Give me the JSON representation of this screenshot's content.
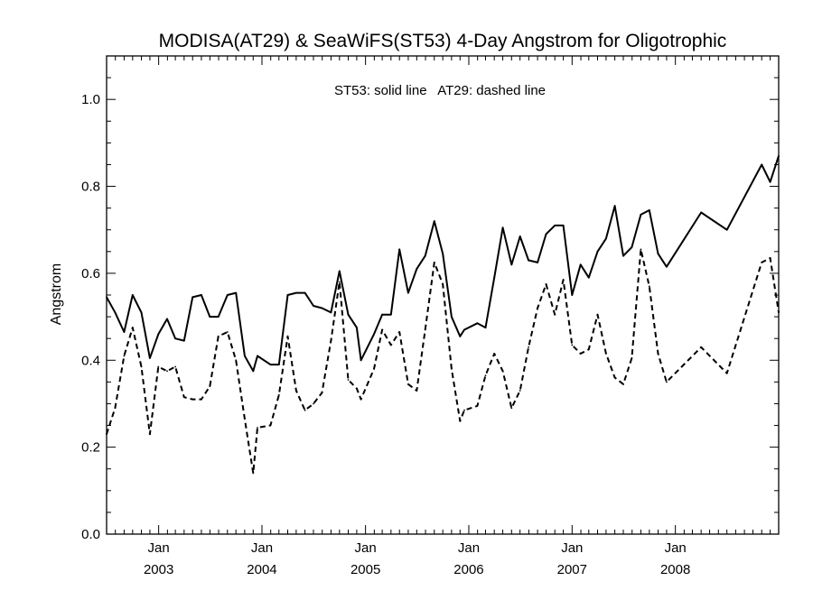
{
  "chart_data": {
    "type": "line",
    "title": "MODISA(AT29) & SeaWiFS(ST53) 4-Day Angstrom for Oligotrophic",
    "annotation": "ST53: solid line   AT29: dashed line",
    "xlabel": "",
    "ylabel": "Angstrom",
    "xlim": [
      "2002-07-01",
      "2008-12-31"
    ],
    "ylim": [
      0,
      1.1
    ],
    "y_ticks": [
      {
        "value": 0.0,
        "label": "0.0"
      },
      {
        "value": 0.2,
        "label": "0.2"
      },
      {
        "value": 0.4,
        "label": "0.4"
      },
      {
        "value": 0.6,
        "label": "0.6"
      },
      {
        "value": 0.8,
        "label": "0.8"
      },
      {
        "value": 1.0,
        "label": "1.0"
      }
    ],
    "x_ticks": [
      {
        "date": "2003-01-01",
        "month": "Jan",
        "year": "2003"
      },
      {
        "date": "2004-01-01",
        "month": "Jan",
        "year": "2004"
      },
      {
        "date": "2005-01-01",
        "month": "Jan",
        "year": "2005"
      },
      {
        "date": "2006-01-01",
        "month": "Jan",
        "year": "2006"
      },
      {
        "date": "2007-01-01",
        "month": "Jan",
        "year": "2007"
      },
      {
        "date": "2008-01-01",
        "month": "Jan",
        "year": "2008"
      }
    ],
    "grid": false,
    "series": [
      {
        "name": "ST53",
        "style": "solid",
        "color": "#000000",
        "points": [
          [
            "2002-07-01",
            0.545
          ],
          [
            "2002-07-31",
            0.51
          ],
          [
            "2002-09-01",
            0.465
          ],
          [
            "2002-10-01",
            0.55
          ],
          [
            "2002-11-01",
            0.51
          ],
          [
            "2002-12-01",
            0.405
          ],
          [
            "2002-12-31",
            0.46
          ],
          [
            "2003-01-31",
            0.495
          ],
          [
            "2003-03-01",
            0.45
          ],
          [
            "2003-04-01",
            0.445
          ],
          [
            "2003-05-01",
            0.545
          ],
          [
            "2003-06-01",
            0.55
          ],
          [
            "2003-07-01",
            0.5
          ],
          [
            "2003-07-31",
            0.5
          ],
          [
            "2003-09-01",
            0.55
          ],
          [
            "2003-10-01",
            0.555
          ],
          [
            "2003-11-01",
            0.41
          ],
          [
            "2003-12-01",
            0.375
          ],
          [
            "2003-12-16",
            0.41
          ],
          [
            "2004-01-31",
            0.39
          ],
          [
            "2004-03-01",
            0.39
          ],
          [
            "2004-04-01",
            0.55
          ],
          [
            "2004-05-01",
            0.555
          ],
          [
            "2004-06-01",
            0.555
          ],
          [
            "2004-07-01",
            0.525
          ],
          [
            "2004-07-31",
            0.52
          ],
          [
            "2004-09-01",
            0.51
          ],
          [
            "2004-10-01",
            0.605
          ],
          [
            "2004-11-01",
            0.505
          ],
          [
            "2004-12-01",
            0.475
          ],
          [
            "2004-12-16",
            0.4
          ],
          [
            "2005-01-31",
            0.46
          ],
          [
            "2005-03-01",
            0.505
          ],
          [
            "2005-04-01",
            0.505
          ],
          [
            "2005-05-01",
            0.655
          ],
          [
            "2005-06-01",
            0.555
          ],
          [
            "2005-07-01",
            0.61
          ],
          [
            "2005-07-31",
            0.64
          ],
          [
            "2005-09-01",
            0.72
          ],
          [
            "2005-10-01",
            0.645
          ],
          [
            "2005-11-01",
            0.5
          ],
          [
            "2005-12-01",
            0.455
          ],
          [
            "2005-12-16",
            0.47
          ],
          [
            "2006-01-31",
            0.485
          ],
          [
            "2006-03-01",
            0.475
          ],
          [
            "2006-04-01",
            0.59
          ],
          [
            "2006-05-01",
            0.705
          ],
          [
            "2006-06-01",
            0.62
          ],
          [
            "2006-07-01",
            0.685
          ],
          [
            "2006-07-31",
            0.63
          ],
          [
            "2006-09-01",
            0.625
          ],
          [
            "2006-10-01",
            0.69
          ],
          [
            "2006-11-01",
            0.71
          ],
          [
            "2006-12-01",
            0.71
          ],
          [
            "2007-01-01",
            0.55
          ],
          [
            "2007-01-31",
            0.62
          ],
          [
            "2007-03-01",
            0.59
          ],
          [
            "2007-04-01",
            0.65
          ],
          [
            "2007-05-01",
            0.68
          ],
          [
            "2007-06-01",
            0.755
          ],
          [
            "2007-07-01",
            0.64
          ],
          [
            "2007-07-31",
            0.66
          ],
          [
            "2007-09-01",
            0.735
          ],
          [
            "2007-10-01",
            0.745
          ],
          [
            "2007-11-01",
            0.645
          ],
          [
            "2007-12-01",
            0.615
          ],
          [
            "2008-04-01",
            0.74
          ],
          [
            "2008-07-01",
            0.7
          ],
          [
            "2008-11-01",
            0.85
          ],
          [
            "2008-12-01",
            0.81
          ],
          [
            "2008-12-31",
            0.87
          ]
        ]
      },
      {
        "name": "AT29",
        "style": "dashed",
        "color": "#000000",
        "points": [
          [
            "2002-07-01",
            0.23
          ],
          [
            "2002-07-31",
            0.29
          ],
          [
            "2002-09-01",
            0.41
          ],
          [
            "2002-10-01",
            0.475
          ],
          [
            "2002-11-01",
            0.385
          ],
          [
            "2002-12-01",
            0.23
          ],
          [
            "2002-12-31",
            0.385
          ],
          [
            "2003-01-31",
            0.375
          ],
          [
            "2003-03-01",
            0.385
          ],
          [
            "2003-04-01",
            0.315
          ],
          [
            "2003-05-01",
            0.31
          ],
          [
            "2003-06-01",
            0.31
          ],
          [
            "2003-07-01",
            0.34
          ],
          [
            "2003-07-31",
            0.455
          ],
          [
            "2003-09-01",
            0.465
          ],
          [
            "2003-10-01",
            0.4
          ],
          [
            "2003-11-01",
            0.265
          ],
          [
            "2003-12-01",
            0.14
          ],
          [
            "2003-12-16",
            0.245
          ],
          [
            "2004-01-31",
            0.25
          ],
          [
            "2004-03-01",
            0.32
          ],
          [
            "2004-04-01",
            0.455
          ],
          [
            "2004-05-01",
            0.33
          ],
          [
            "2004-06-01",
            0.285
          ],
          [
            "2004-07-01",
            0.3
          ],
          [
            "2004-07-31",
            0.325
          ],
          [
            "2004-09-01",
            0.445
          ],
          [
            "2004-10-01",
            0.58
          ],
          [
            "2004-11-01",
            0.355
          ],
          [
            "2004-12-01",
            0.335
          ],
          [
            "2004-12-16",
            0.31
          ],
          [
            "2005-01-31",
            0.38
          ],
          [
            "2005-03-01",
            0.47
          ],
          [
            "2005-04-01",
            0.435
          ],
          [
            "2005-05-01",
            0.465
          ],
          [
            "2005-06-01",
            0.345
          ],
          [
            "2005-07-01",
            0.33
          ],
          [
            "2005-07-31",
            0.47
          ],
          [
            "2005-09-01",
            0.625
          ],
          [
            "2005-10-01",
            0.575
          ],
          [
            "2005-11-01",
            0.38
          ],
          [
            "2005-12-01",
            0.26
          ],
          [
            "2005-12-16",
            0.285
          ],
          [
            "2006-01-31",
            0.295
          ],
          [
            "2006-03-01",
            0.365
          ],
          [
            "2006-04-01",
            0.415
          ],
          [
            "2006-05-01",
            0.375
          ],
          [
            "2006-06-01",
            0.29
          ],
          [
            "2006-07-01",
            0.33
          ],
          [
            "2006-07-31",
            0.43
          ],
          [
            "2006-09-01",
            0.52
          ],
          [
            "2006-10-01",
            0.575
          ],
          [
            "2006-11-01",
            0.505
          ],
          [
            "2006-12-01",
            0.585
          ],
          [
            "2007-01-01",
            0.435
          ],
          [
            "2007-01-31",
            0.415
          ],
          [
            "2007-03-01",
            0.425
          ],
          [
            "2007-04-01",
            0.505
          ],
          [
            "2007-05-01",
            0.415
          ],
          [
            "2007-06-01",
            0.36
          ],
          [
            "2007-07-01",
            0.345
          ],
          [
            "2007-07-31",
            0.405
          ],
          [
            "2007-09-01",
            0.655
          ],
          [
            "2007-10-01",
            0.57
          ],
          [
            "2007-11-01",
            0.415
          ],
          [
            "2007-12-01",
            0.35
          ],
          [
            "2008-04-01",
            0.43
          ],
          [
            "2008-07-01",
            0.37
          ],
          [
            "2008-11-01",
            0.625
          ],
          [
            "2008-12-01",
            0.635
          ],
          [
            "2008-12-31",
            0.51
          ]
        ]
      }
    ]
  }
}
